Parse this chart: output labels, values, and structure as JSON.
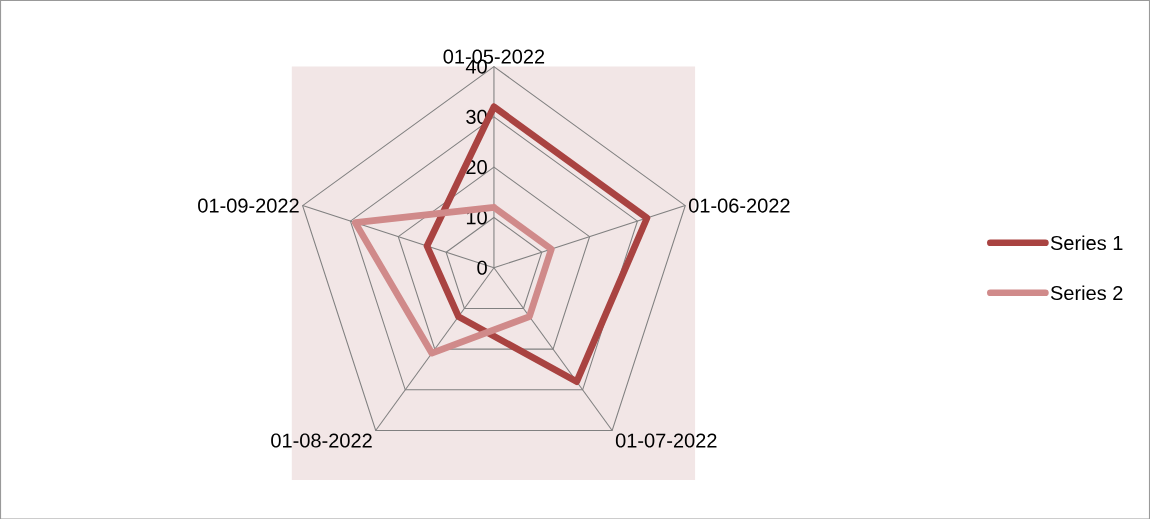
{
  "chart_data": {
    "type": "radar",
    "categories": [
      "01-05-2022",
      "01-06-2022",
      "01-07-2022",
      "01-08-2022",
      "01-09-2022"
    ],
    "series": [
      {
        "name": "Series 1",
        "color": "#a94341",
        "values": [
          32,
          32,
          28,
          12,
          14
        ]
      },
      {
        "name": "Series 2",
        "color": "#d08a8a",
        "values": [
          12,
          12,
          12,
          21,
          29
        ]
      }
    ],
    "ylim": [
      0,
      40
    ],
    "yticks": [
      0,
      10,
      20,
      30,
      40
    ],
    "grid": true,
    "legend": "right",
    "marker": "none",
    "line_style": "solid"
  }
}
